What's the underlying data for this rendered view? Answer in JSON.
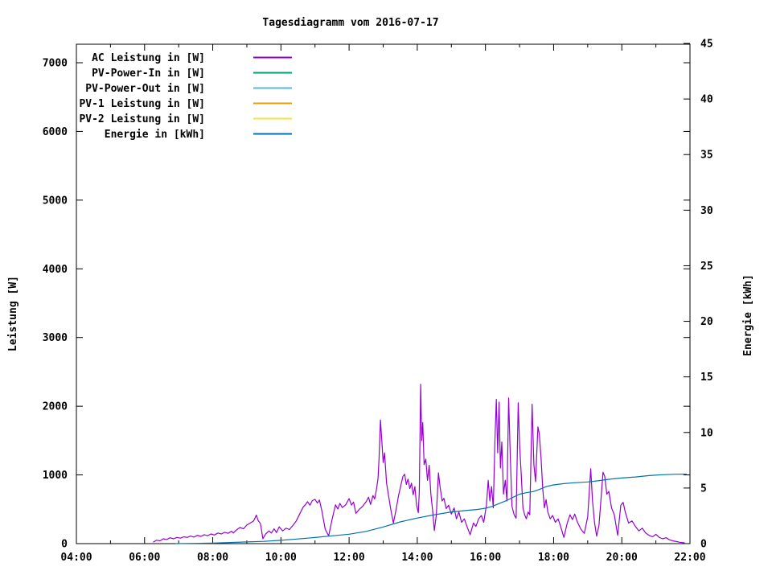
{
  "title": "Tagesdiagramm vom 2016-07-17",
  "chart_data": {
    "type": "line",
    "title": "Tagesdiagramm vom 2016-07-17",
    "grid": false,
    "legend_position": "top-left-inside",
    "x_axis": {
      "label": "",
      "range_hours": [
        4,
        22
      ],
      "major_tick_hours": [
        4,
        6,
        8,
        10,
        12,
        14,
        16,
        18,
        20,
        22
      ],
      "major_tick_labels": [
        "04:00",
        "06:00",
        "08:00",
        "10:00",
        "12:00",
        "14:00",
        "16:00",
        "18:00",
        "20:00",
        "22:00"
      ],
      "minor_tick_every_hours": 1
    },
    "y_left": {
      "label": "Leistung [W]",
      "range": [
        0,
        7270
      ],
      "ticks": [
        0,
        1000,
        2000,
        3000,
        4000,
        5000,
        6000,
        7000
      ]
    },
    "y_right": {
      "label": "Energie [kWh]",
      "range": [
        0,
        45
      ],
      "ticks": [
        0,
        5,
        10,
        15,
        20,
        25,
        30,
        35,
        40,
        45
      ],
      "mirrored_watt_ticks": [
        1000,
        2000,
        3000,
        4000,
        5000,
        6000,
        7000
      ]
    },
    "legend": [
      {
        "label": "AC Leistung in [W]",
        "color": "#9400d3"
      },
      {
        "label": "PV-Power-In in [W]",
        "color": "#009e73"
      },
      {
        "label": "PV-Power-Out in [W]",
        "color": "#56b4e9"
      },
      {
        "label": "PV-1 Leistung in [W]",
        "color": "#e69f00"
      },
      {
        "label": "PV-2 Leistung in [W]",
        "color": "#f0e442"
      },
      {
        "label": "Energie in [kWh]",
        "color": "#0072b2"
      }
    ],
    "series": [
      {
        "name": "AC Leistung in [W]",
        "color": "#9400d3",
        "axis": "left",
        "visible": true,
        "points": [
          [
            6.25,
            20
          ],
          [
            6.35,
            50
          ],
          [
            6.45,
            40
          ],
          [
            6.55,
            70
          ],
          [
            6.65,
            60
          ],
          [
            6.75,
            85
          ],
          [
            6.85,
            70
          ],
          [
            6.95,
            90
          ],
          [
            7.05,
            80
          ],
          [
            7.15,
            100
          ],
          [
            7.25,
            90
          ],
          [
            7.35,
            110
          ],
          [
            7.45,
            95
          ],
          [
            7.55,
            120
          ],
          [
            7.65,
            105
          ],
          [
            7.75,
            130
          ],
          [
            7.85,
            115
          ],
          [
            7.95,
            140
          ],
          [
            8.05,
            125
          ],
          [
            8.15,
            155
          ],
          [
            8.25,
            140
          ],
          [
            8.35,
            165
          ],
          [
            8.45,
            150
          ],
          [
            8.55,
            180
          ],
          [
            8.6,
            155
          ],
          [
            8.7,
            200
          ],
          [
            8.8,
            235
          ],
          [
            8.9,
            215
          ],
          [
            9.0,
            270
          ],
          [
            9.1,
            300
          ],
          [
            9.2,
            330
          ],
          [
            9.28,
            415
          ],
          [
            9.33,
            340
          ],
          [
            9.4,
            290
          ],
          [
            9.47,
            70
          ],
          [
            9.55,
            140
          ],
          [
            9.65,
            185
          ],
          [
            9.72,
            155
          ],
          [
            9.8,
            215
          ],
          [
            9.87,
            160
          ],
          [
            9.95,
            245
          ],
          [
            10.05,
            185
          ],
          [
            10.15,
            225
          ],
          [
            10.25,
            205
          ],
          [
            10.35,
            265
          ],
          [
            10.45,
            330
          ],
          [
            10.55,
            430
          ],
          [
            10.65,
            530
          ],
          [
            10.72,
            570
          ],
          [
            10.78,
            610
          ],
          [
            10.85,
            560
          ],
          [
            10.92,
            625
          ],
          [
            11.0,
            645
          ],
          [
            11.07,
            590
          ],
          [
            11.13,
            635
          ],
          [
            11.2,
            480
          ],
          [
            11.3,
            210
          ],
          [
            11.4,
            115
          ],
          [
            11.5,
            350
          ],
          [
            11.6,
            565
          ],
          [
            11.67,
            505
          ],
          [
            11.73,
            585
          ],
          [
            11.8,
            525
          ],
          [
            11.9,
            565
          ],
          [
            12.0,
            655
          ],
          [
            12.07,
            560
          ],
          [
            12.13,
            605
          ],
          [
            12.2,
            440
          ],
          [
            12.3,
            500
          ],
          [
            12.4,
            545
          ],
          [
            12.5,
            610
          ],
          [
            12.57,
            675
          ],
          [
            12.63,
            570
          ],
          [
            12.7,
            700
          ],
          [
            12.75,
            650
          ],
          [
            12.8,
            780
          ],
          [
            12.85,
            950
          ],
          [
            12.88,
            1250
          ],
          [
            12.92,
            1800
          ],
          [
            12.96,
            1500
          ],
          [
            13.0,
            1180
          ],
          [
            13.04,
            1320
          ],
          [
            13.1,
            880
          ],
          [
            13.17,
            660
          ],
          [
            13.23,
            480
          ],
          [
            13.3,
            300
          ],
          [
            13.38,
            500
          ],
          [
            13.45,
            700
          ],
          [
            13.52,
            850
          ],
          [
            13.58,
            980
          ],
          [
            13.63,
            1010
          ],
          [
            13.68,
            860
          ],
          [
            13.73,
            940
          ],
          [
            13.78,
            800
          ],
          [
            13.83,
            880
          ],
          [
            13.88,
            710
          ],
          [
            13.93,
            830
          ],
          [
            13.98,
            560
          ],
          [
            14.03,
            450
          ],
          [
            14.06,
            750
          ],
          [
            14.1,
            2320
          ],
          [
            14.13,
            1500
          ],
          [
            14.16,
            1760
          ],
          [
            14.2,
            1150
          ],
          [
            14.25,
            1230
          ],
          [
            14.3,
            920
          ],
          [
            14.35,
            1140
          ],
          [
            14.4,
            720
          ],
          [
            14.45,
            480
          ],
          [
            14.5,
            190
          ],
          [
            14.56,
            420
          ],
          [
            14.62,
            1030
          ],
          [
            14.67,
            820
          ],
          [
            14.73,
            620
          ],
          [
            14.78,
            660
          ],
          [
            14.85,
            510
          ],
          [
            14.92,
            560
          ],
          [
            15.0,
            430
          ],
          [
            15.08,
            520
          ],
          [
            15.15,
            360
          ],
          [
            15.22,
            460
          ],
          [
            15.3,
            310
          ],
          [
            15.38,
            360
          ],
          [
            15.45,
            260
          ],
          [
            15.55,
            130
          ],
          [
            15.65,
            300
          ],
          [
            15.72,
            250
          ],
          [
            15.8,
            360
          ],
          [
            15.88,
            410
          ],
          [
            15.95,
            310
          ],
          [
            16.03,
            560
          ],
          [
            16.08,
            920
          ],
          [
            16.13,
            620
          ],
          [
            16.18,
            830
          ],
          [
            16.23,
            520
          ],
          [
            16.28,
            1520
          ],
          [
            16.32,
            2100
          ],
          [
            16.36,
            1320
          ],
          [
            16.4,
            2060
          ],
          [
            16.44,
            1100
          ],
          [
            16.48,
            1480
          ],
          [
            16.53,
            720
          ],
          [
            16.58,
            920
          ],
          [
            16.63,
            620
          ],
          [
            16.68,
            2120
          ],
          [
            16.73,
            1250
          ],
          [
            16.78,
            540
          ],
          [
            16.84,
            420
          ],
          [
            16.9,
            370
          ],
          [
            16.96,
            2050
          ],
          [
            17.0,
            1450
          ],
          [
            17.05,
            1000
          ],
          [
            17.1,
            520
          ],
          [
            17.15,
            420
          ],
          [
            17.2,
            360
          ],
          [
            17.25,
            460
          ],
          [
            17.3,
            420
          ],
          [
            17.37,
            2030
          ],
          [
            17.42,
            1150
          ],
          [
            17.47,
            900
          ],
          [
            17.54,
            1700
          ],
          [
            17.58,
            1600
          ],
          [
            17.63,
            1250
          ],
          [
            17.68,
            800
          ],
          [
            17.73,
            520
          ],
          [
            17.78,
            640
          ],
          [
            17.83,
            460
          ],
          [
            17.9,
            360
          ],
          [
            17.97,
            410
          ],
          [
            18.05,
            310
          ],
          [
            18.13,
            360
          ],
          [
            18.2,
            260
          ],
          [
            18.3,
            90
          ],
          [
            18.4,
            300
          ],
          [
            18.48,
            420
          ],
          [
            18.55,
            350
          ],
          [
            18.62,
            430
          ],
          [
            18.7,
            310
          ],
          [
            18.8,
            210
          ],
          [
            18.9,
            150
          ],
          [
            19.0,
            390
          ],
          [
            19.09,
            1090
          ],
          [
            19.14,
            620
          ],
          [
            19.2,
            310
          ],
          [
            19.26,
            110
          ],
          [
            19.33,
            260
          ],
          [
            19.45,
            1040
          ],
          [
            19.5,
            980
          ],
          [
            19.56,
            720
          ],
          [
            19.62,
            760
          ],
          [
            19.7,
            520
          ],
          [
            19.78,
            420
          ],
          [
            19.88,
            120
          ],
          [
            19.97,
            560
          ],
          [
            20.04,
            600
          ],
          [
            20.1,
            460
          ],
          [
            20.2,
            300
          ],
          [
            20.3,
            330
          ],
          [
            20.4,
            250
          ],
          [
            20.5,
            185
          ],
          [
            20.6,
            225
          ],
          [
            20.7,
            155
          ],
          [
            20.8,
            120
          ],
          [
            20.9,
            100
          ],
          [
            21.0,
            135
          ],
          [
            21.1,
            90
          ],
          [
            21.2,
            70
          ],
          [
            21.3,
            85
          ],
          [
            21.4,
            55
          ],
          [
            21.5,
            40
          ],
          [
            21.6,
            30
          ],
          [
            21.7,
            20
          ],
          [
            21.85,
            10
          ]
        ]
      },
      {
        "name": "PV-Power-In in [W]",
        "color": "#009e73",
        "axis": "left",
        "visible": false,
        "points": []
      },
      {
        "name": "PV-Power-Out in [W]",
        "color": "#56b4e9",
        "axis": "left",
        "visible": false,
        "points": []
      },
      {
        "name": "PV-1 Leistung in [W]",
        "color": "#e69f00",
        "axis": "left",
        "visible": false,
        "points": []
      },
      {
        "name": "PV-2 Leistung in [W]",
        "color": "#f0e442",
        "axis": "left",
        "visible": false,
        "points": []
      },
      {
        "name": "Energie in [kWh]",
        "color": "#0072b2",
        "axis": "right",
        "visible": true,
        "points": [
          [
            6.9,
            0
          ],
          [
            7.5,
            0.02
          ],
          [
            8.0,
            0.05
          ],
          [
            8.5,
            0.1
          ],
          [
            9.0,
            0.15
          ],
          [
            9.5,
            0.2
          ],
          [
            10.0,
            0.3
          ],
          [
            10.5,
            0.42
          ],
          [
            11.0,
            0.55
          ],
          [
            11.5,
            0.7
          ],
          [
            12.0,
            0.85
          ],
          [
            12.5,
            1.1
          ],
          [
            13.0,
            1.5
          ],
          [
            13.5,
            1.95
          ],
          [
            14.0,
            2.3
          ],
          [
            14.5,
            2.6
          ],
          [
            15.0,
            2.85
          ],
          [
            15.5,
            3.0
          ],
          [
            15.75,
            3.07
          ],
          [
            16.0,
            3.18
          ],
          [
            16.2,
            3.35
          ],
          [
            16.4,
            3.6
          ],
          [
            16.6,
            3.85
          ],
          [
            16.8,
            4.15
          ],
          [
            17.0,
            4.45
          ],
          [
            17.2,
            4.58
          ],
          [
            17.4,
            4.68
          ],
          [
            17.6,
            4.9
          ],
          [
            17.8,
            5.15
          ],
          [
            18.0,
            5.28
          ],
          [
            18.3,
            5.4
          ],
          [
            18.6,
            5.48
          ],
          [
            19.0,
            5.55
          ],
          [
            19.3,
            5.65
          ],
          [
            19.6,
            5.78
          ],
          [
            20.0,
            5.9
          ],
          [
            20.4,
            6.0
          ],
          [
            20.8,
            6.12
          ],
          [
            21.2,
            6.2
          ],
          [
            21.6,
            6.24
          ],
          [
            21.9,
            6.25
          ]
        ]
      }
    ]
  }
}
